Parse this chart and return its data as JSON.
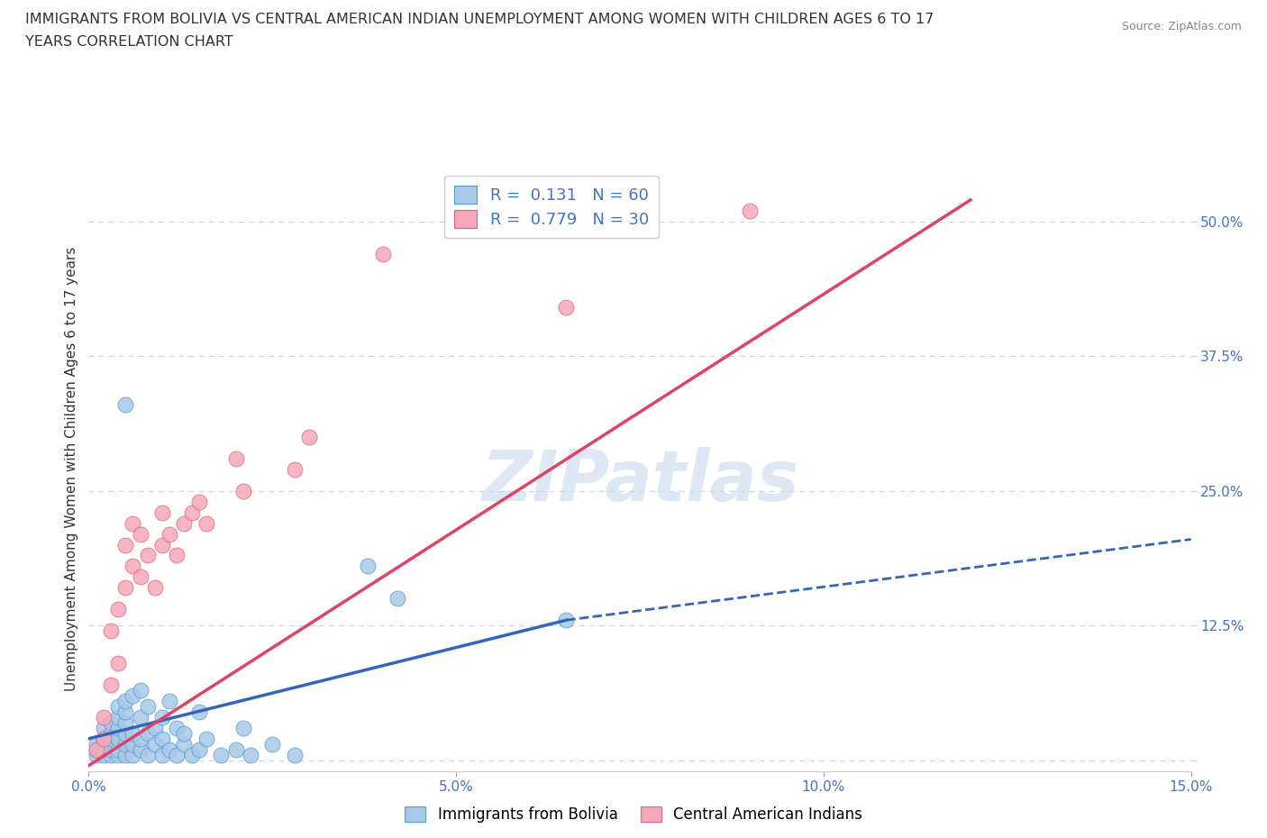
{
  "title_line1": "IMMIGRANTS FROM BOLIVIA VS CENTRAL AMERICAN INDIAN UNEMPLOYMENT AMONG WOMEN WITH CHILDREN AGES 6 TO 17",
  "title_line2": "YEARS CORRELATION CHART",
  "source": "Source: ZipAtlas.com",
  "ylabel": "Unemployment Among Women with Children Ages 6 to 17 years",
  "xlim": [
    0.0,
    0.15
  ],
  "ylim": [
    -0.01,
    0.55
  ],
  "xticks": [
    0.0,
    0.05,
    0.1,
    0.15
  ],
  "xticklabels": [
    "0.0%",
    "5.0%",
    "10.0%",
    "15.0%"
  ],
  "yticks_right": [
    0.0,
    0.125,
    0.25,
    0.375,
    0.5
  ],
  "yticklabels_right": [
    "",
    "12.5%",
    "25.0%",
    "37.5%",
    "50.0%"
  ],
  "watermark": "ZIPatlas",
  "blue_color": "#A8C8E8",
  "pink_color": "#F4A8B8",
  "blue_edge_color": "#5599CC",
  "pink_edge_color": "#E06080",
  "blue_line_color": "#3366BB",
  "pink_line_color": "#DD4466",
  "blue_scatter": [
    [
      0.001,
      0.005
    ],
    [
      0.001,
      0.01
    ],
    [
      0.001,
      0.015
    ],
    [
      0.002,
      0.005
    ],
    [
      0.002,
      0.01
    ],
    [
      0.002,
      0.02
    ],
    [
      0.002,
      0.03
    ],
    [
      0.003,
      0.005
    ],
    [
      0.003,
      0.01
    ],
    [
      0.003,
      0.02
    ],
    [
      0.003,
      0.025
    ],
    [
      0.003,
      0.035
    ],
    [
      0.004,
      0.005
    ],
    [
      0.004,
      0.01
    ],
    [
      0.004,
      0.02
    ],
    [
      0.004,
      0.03
    ],
    [
      0.004,
      0.04
    ],
    [
      0.004,
      0.05
    ],
    [
      0.005,
      0.005
    ],
    [
      0.005,
      0.015
    ],
    [
      0.005,
      0.025
    ],
    [
      0.005,
      0.035
    ],
    [
      0.005,
      0.045
    ],
    [
      0.005,
      0.055
    ],
    [
      0.006,
      0.005
    ],
    [
      0.006,
      0.015
    ],
    [
      0.006,
      0.025
    ],
    [
      0.006,
      0.06
    ],
    [
      0.007,
      0.01
    ],
    [
      0.007,
      0.02
    ],
    [
      0.007,
      0.04
    ],
    [
      0.007,
      0.065
    ],
    [
      0.008,
      0.005
    ],
    [
      0.008,
      0.025
    ],
    [
      0.008,
      0.05
    ],
    [
      0.009,
      0.015
    ],
    [
      0.009,
      0.03
    ],
    [
      0.01,
      0.005
    ],
    [
      0.01,
      0.02
    ],
    [
      0.01,
      0.04
    ],
    [
      0.011,
      0.01
    ],
    [
      0.011,
      0.055
    ],
    [
      0.012,
      0.005
    ],
    [
      0.012,
      0.03
    ],
    [
      0.013,
      0.015
    ],
    [
      0.013,
      0.025
    ],
    [
      0.014,
      0.005
    ],
    [
      0.015,
      0.01
    ],
    [
      0.015,
      0.045
    ],
    [
      0.016,
      0.02
    ],
    [
      0.018,
      0.005
    ],
    [
      0.02,
      0.01
    ],
    [
      0.021,
      0.03
    ],
    [
      0.022,
      0.005
    ],
    [
      0.025,
      0.015
    ],
    [
      0.028,
      0.005
    ],
    [
      0.005,
      0.33
    ],
    [
      0.038,
      0.18
    ],
    [
      0.042,
      0.15
    ],
    [
      0.065,
      0.13
    ]
  ],
  "pink_scatter": [
    [
      0.001,
      0.01
    ],
    [
      0.002,
      0.02
    ],
    [
      0.002,
      0.04
    ],
    [
      0.003,
      0.07
    ],
    [
      0.003,
      0.12
    ],
    [
      0.004,
      0.09
    ],
    [
      0.004,
      0.14
    ],
    [
      0.005,
      0.16
    ],
    [
      0.005,
      0.2
    ],
    [
      0.006,
      0.18
    ],
    [
      0.006,
      0.22
    ],
    [
      0.007,
      0.17
    ],
    [
      0.007,
      0.21
    ],
    [
      0.008,
      0.19
    ],
    [
      0.009,
      0.16
    ],
    [
      0.01,
      0.2
    ],
    [
      0.01,
      0.23
    ],
    [
      0.011,
      0.21
    ],
    [
      0.012,
      0.19
    ],
    [
      0.013,
      0.22
    ],
    [
      0.014,
      0.23
    ],
    [
      0.015,
      0.24
    ],
    [
      0.016,
      0.22
    ],
    [
      0.02,
      0.28
    ],
    [
      0.021,
      0.25
    ],
    [
      0.028,
      0.27
    ],
    [
      0.03,
      0.3
    ],
    [
      0.04,
      0.47
    ],
    [
      0.065,
      0.42
    ],
    [
      0.09,
      0.51
    ]
  ],
  "blue_solid_line": [
    [
      0.0,
      0.02
    ],
    [
      0.065,
      0.13
    ]
  ],
  "blue_dashed_line": [
    [
      0.065,
      0.13
    ],
    [
      0.15,
      0.205
    ]
  ],
  "pink_solid_line": [
    [
      0.0,
      -0.005
    ],
    [
      0.12,
      0.52
    ]
  ],
  "legend_labels_bottom": [
    "Immigrants from Bolivia",
    "Central American Indians"
  ],
  "background_color": "#FFFFFF",
  "grid_color": "#C8D4E8"
}
